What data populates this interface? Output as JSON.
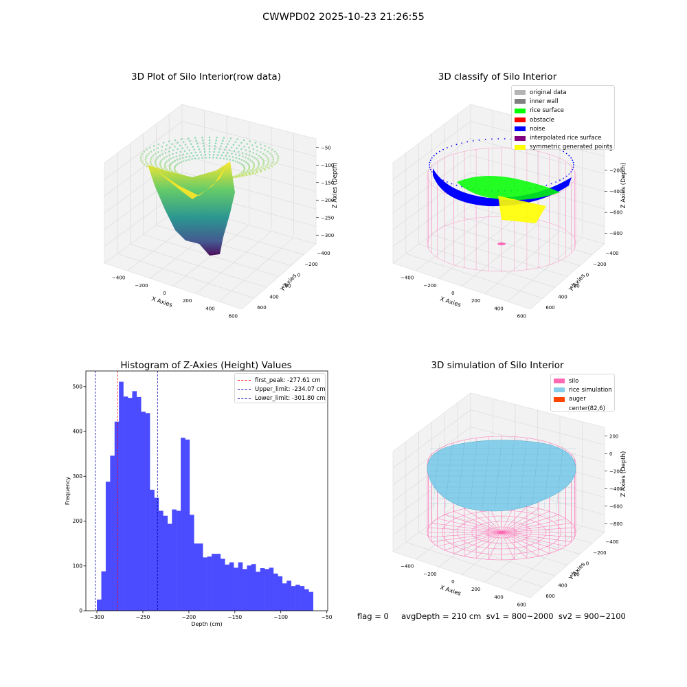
{
  "suptitle": "CWWPD02 2025-10-23 21:26:55",
  "footer": "flag = 0     avgDepth = 210 cm  sv1 = 800~2000  sv2 = 900~2100",
  "colors": {
    "histogram_bar": "#4b4bff",
    "first_peak_line": "#ff0000",
    "limit_lines": "#0000aa",
    "silo_wire": "#ff69b4",
    "rice_fill": "#87ceeb",
    "noise": "#0000ff",
    "rice_surface": "#00ff00",
    "symmetric": "#ffff00"
  },
  "chart_data": [
    {
      "type": "scatter",
      "subtype": "3d-surface-scatter",
      "title": "3D Plot of Silo Interior(row data)",
      "xlabel": "X Axies",
      "ylabel": "Y Axies",
      "zlabel": "Z Axies (Depth)",
      "x_ticks": [
        "−400",
        "−200",
        "0",
        "200",
        "400",
        "600"
      ],
      "y_ticks": [
        "−400",
        "−200",
        "0",
        "200",
        "400",
        "600"
      ],
      "z_ticks": [
        "−50",
        "−100",
        "−150",
        "−200",
        "−250",
        "−300"
      ],
      "colormap": "viridis"
    },
    {
      "type": "scatter",
      "subtype": "3d-classified",
      "title": "3D classify of Silo Interior",
      "xlabel": "X Axies",
      "ylabel": "Y Axies",
      "zlabel": "Z Axies (Depth)",
      "x_ticks": [
        "−400",
        "−200",
        "0",
        "200",
        "400",
        "600"
      ],
      "y_ticks": [
        "−400",
        "−200",
        "0",
        "200",
        "400",
        "600"
      ],
      "z_ticks": [
        "0",
        "−200",
        "−400",
        "−600",
        "−800"
      ],
      "legend": [
        {
          "label": "original data",
          "color": "#b3b3b3"
        },
        {
          "label": "inner wall",
          "color": "#808080"
        },
        {
          "label": "rice surface",
          "color": "#00ff00"
        },
        {
          "label": "obstacle",
          "color": "#ff0000"
        },
        {
          "label": "noise",
          "color": "#0000ff"
        },
        {
          "label": "interpolated rice surface",
          "color": "#800080"
        },
        {
          "label": "symmetric generated points",
          "color": "#ffff00"
        }
      ]
    },
    {
      "type": "bar",
      "subtype": "histogram",
      "title": "Histogram of Z-Axies (Height) Values",
      "xlabel": "Depth (cm)",
      "ylabel": "Frequency",
      "xlim": [
        -312,
        -49
      ],
      "ylim": [
        0,
        535
      ],
      "x_ticks": [
        -300,
        -250,
        -200,
        -150,
        -100,
        -50
      ],
      "x_tick_labels": [
        "−300",
        "−250",
        "−200",
        "−150",
        "−100",
        "−50"
      ],
      "y_ticks": [
        0,
        100,
        200,
        300,
        400,
        500
      ],
      "y_tick_labels": [
        "0",
        "100",
        "200",
        "300",
        "400",
        "500"
      ],
      "bin_start": -300.0,
      "bin_width": 4.8,
      "values": [
        25,
        88,
        288,
        346,
        422,
        511,
        478,
        475,
        490,
        477,
        444,
        441,
        270,
        252,
        223,
        212,
        194,
        226,
        223,
        386,
        382,
        214,
        150,
        150,
        119,
        121,
        127,
        127,
        116,
        103,
        108,
        96,
        108,
        93,
        101,
        104,
        87,
        95,
        93,
        96,
        83,
        77,
        61,
        67,
        55,
        58,
        55,
        48,
        42
      ],
      "vlines": [
        {
          "label": "first_peak: -277.61 cm",
          "x": -277.61,
          "color": "#ff0000"
        },
        {
          "label": "Upper_limit: -234.07 cm",
          "x": -234.07,
          "color": "#0000aa"
        },
        {
          "label": "Lower_limit: -301.80 cm",
          "x": -301.8,
          "color": "#0000aa"
        }
      ]
    },
    {
      "type": "scatter",
      "subtype": "3d-simulation",
      "title": "3D simulation of Silo Interior",
      "xlabel": "X Axies",
      "ylabel": "Y Axies",
      "zlabel": "Z Axies (Depth)",
      "x_ticks": [
        "−400",
        "−200",
        "0",
        "200",
        "400",
        "600"
      ],
      "y_ticks": [
        "−400",
        "−200",
        "0",
        "200",
        "400",
        "600"
      ],
      "z_ticks": [
        "200",
        "0",
        "−200",
        "−400",
        "−600",
        "−800"
      ],
      "legend": [
        {
          "label": "silo",
          "color": "#ff69b4"
        },
        {
          "label": "rice simulation",
          "color": "#87ceeb"
        },
        {
          "label": "auger",
          "color": "#ff4500"
        },
        {
          "label": "center(82,6)",
          "color": ""
        }
      ]
    }
  ]
}
